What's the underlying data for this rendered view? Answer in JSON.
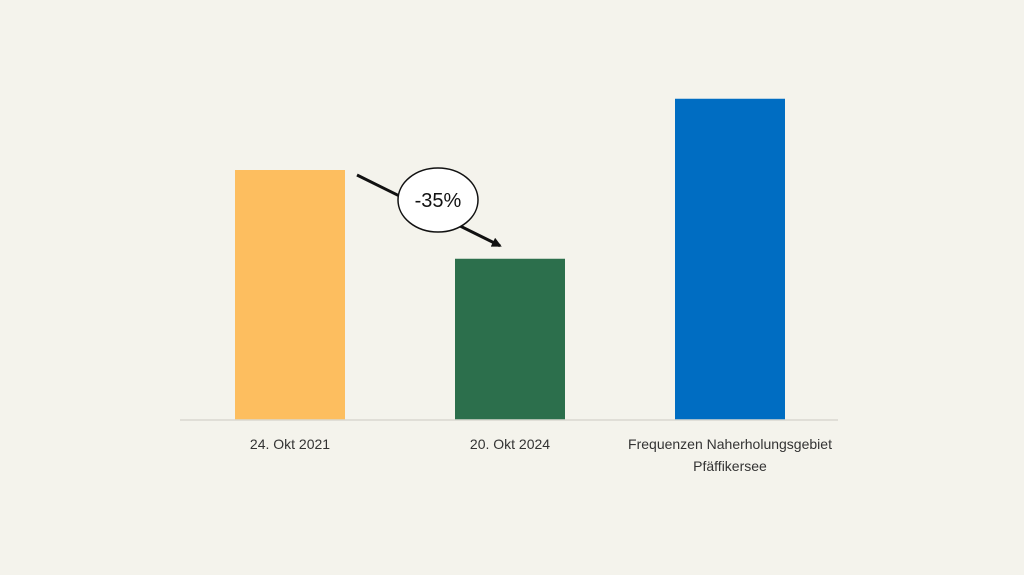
{
  "chart_data": {
    "type": "bar",
    "categories": [
      [
        "24. Okt 2021"
      ],
      [
        "20. Okt 2024"
      ],
      [
        "Frequenzen Naherholungsgebiet",
        "Pfäffikersee"
      ]
    ],
    "values": [
      100,
      64.5,
      128.5
    ],
    "colors": [
      "#fdbe5f",
      "#2c6f4c",
      "#006dc2"
    ],
    "ylim": [
      0,
      140
    ],
    "grid": false,
    "legend": "none",
    "annotation": {
      "text": "-35%",
      "from_category": 0,
      "to_category": 1
    }
  }
}
